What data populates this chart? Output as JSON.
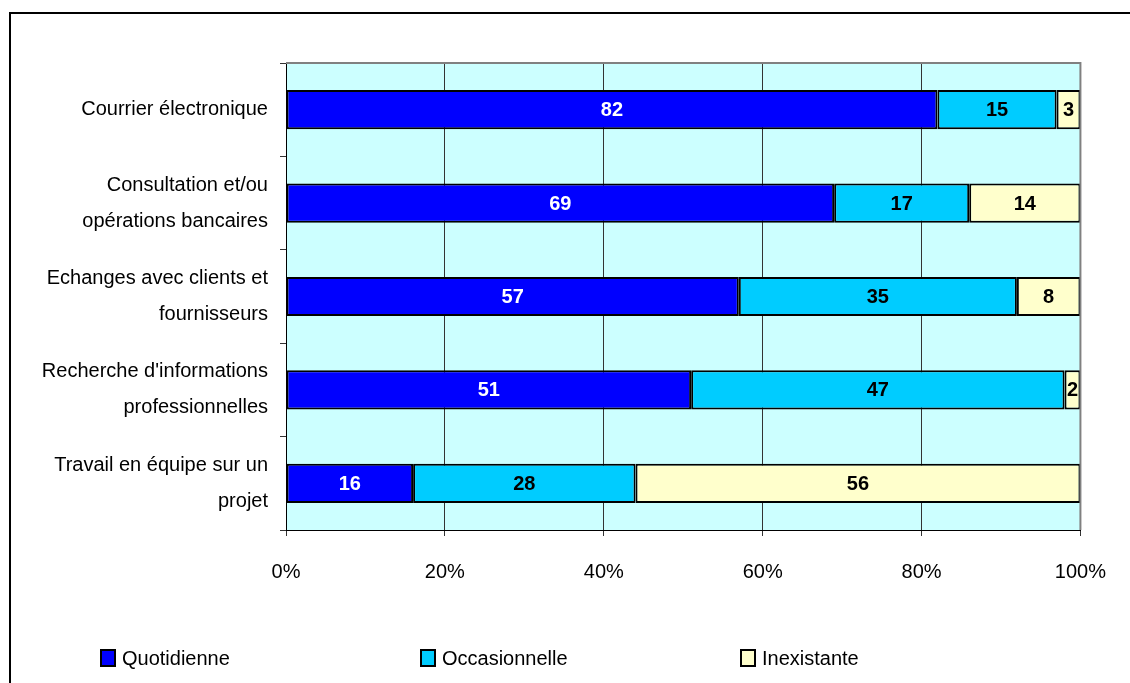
{
  "chart_data": {
    "type": "bar",
    "orientation": "horizontal",
    "stacked": true,
    "categories": [
      "Courrier électronique",
      "Consultation et/ou opérations bancaires",
      "Echanges avec clients et fournisseurs",
      "Recherche d'informations professionnelles",
      "Travail en équipe sur un projet"
    ],
    "series": [
      {
        "name": "Quotidienne",
        "color": "#0000ff",
        "values": [
          82,
          69,
          57,
          51,
          16
        ]
      },
      {
        "name": "Occasionnelle",
        "color": "#00ccff",
        "values": [
          15,
          17,
          35,
          47,
          28
        ]
      },
      {
        "name": "Inexistante",
        "color": "#ffffcc",
        "values": [
          3,
          14,
          8,
          2,
          56
        ]
      }
    ],
    "xlim": [
      0,
      100
    ],
    "xticks": [
      {
        "value": 0,
        "label": "0%"
      },
      {
        "value": 20,
        "label": "20%"
      },
      {
        "value": 40,
        "label": "40%"
      },
      {
        "value": 60,
        "label": "60%"
      },
      {
        "value": 80,
        "label": "80%"
      },
      {
        "value": 100,
        "label": "100%"
      }
    ],
    "grid": "x",
    "legend": "bottom",
    "data_labels": true
  }
}
